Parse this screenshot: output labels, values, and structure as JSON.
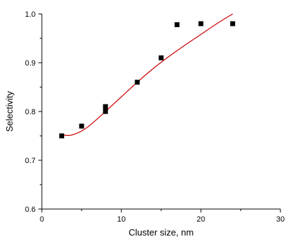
{
  "chart_data": {
    "type": "scatter",
    "title": "",
    "xlabel": "Cluster size, nm",
    "ylabel": "Selectivity",
    "xlim": [
      0,
      30
    ],
    "ylim": [
      0.6,
      1.0
    ],
    "xticks": [
      "0",
      "10",
      "20",
      "30"
    ],
    "yticks": [
      "0.6",
      "0.7",
      "0.8",
      "0.9",
      "1.0"
    ],
    "grid": false,
    "legend": "none",
    "series": [
      {
        "type": "scatter",
        "marker": "square",
        "color": "#000000",
        "points": [
          {
            "x": 2.5,
            "y": 0.75
          },
          {
            "x": 5.0,
            "y": 0.77
          },
          {
            "x": 8.0,
            "y": 0.8
          },
          {
            "x": 8.0,
            "y": 0.81
          },
          {
            "x": 12.0,
            "y": 0.86
          },
          {
            "x": 15.0,
            "y": 0.91
          },
          {
            "x": 17.0,
            "y": 0.978
          },
          {
            "x": 20.0,
            "y": 0.98
          },
          {
            "x": 24.0,
            "y": 0.98
          }
        ]
      },
      {
        "type": "line",
        "color": "#cc0000",
        "points": [
          {
            "x": 2.5,
            "y": 0.752
          },
          {
            "x": 3.5,
            "y": 0.751
          },
          {
            "x": 4.5,
            "y": 0.756
          },
          {
            "x": 5.5,
            "y": 0.765
          },
          {
            "x": 6.5,
            "y": 0.778
          },
          {
            "x": 8.0,
            "y": 0.8
          },
          {
            "x": 10.0,
            "y": 0.83
          },
          {
            "x": 12.0,
            "y": 0.86
          },
          {
            "x": 14.0,
            "y": 0.888
          },
          {
            "x": 16.0,
            "y": 0.913
          },
          {
            "x": 18.0,
            "y": 0.936
          },
          {
            "x": 20.0,
            "y": 0.958
          },
          {
            "x": 22.0,
            "y": 0.98
          },
          {
            "x": 24.0,
            "y": 1.0
          }
        ]
      }
    ]
  }
}
